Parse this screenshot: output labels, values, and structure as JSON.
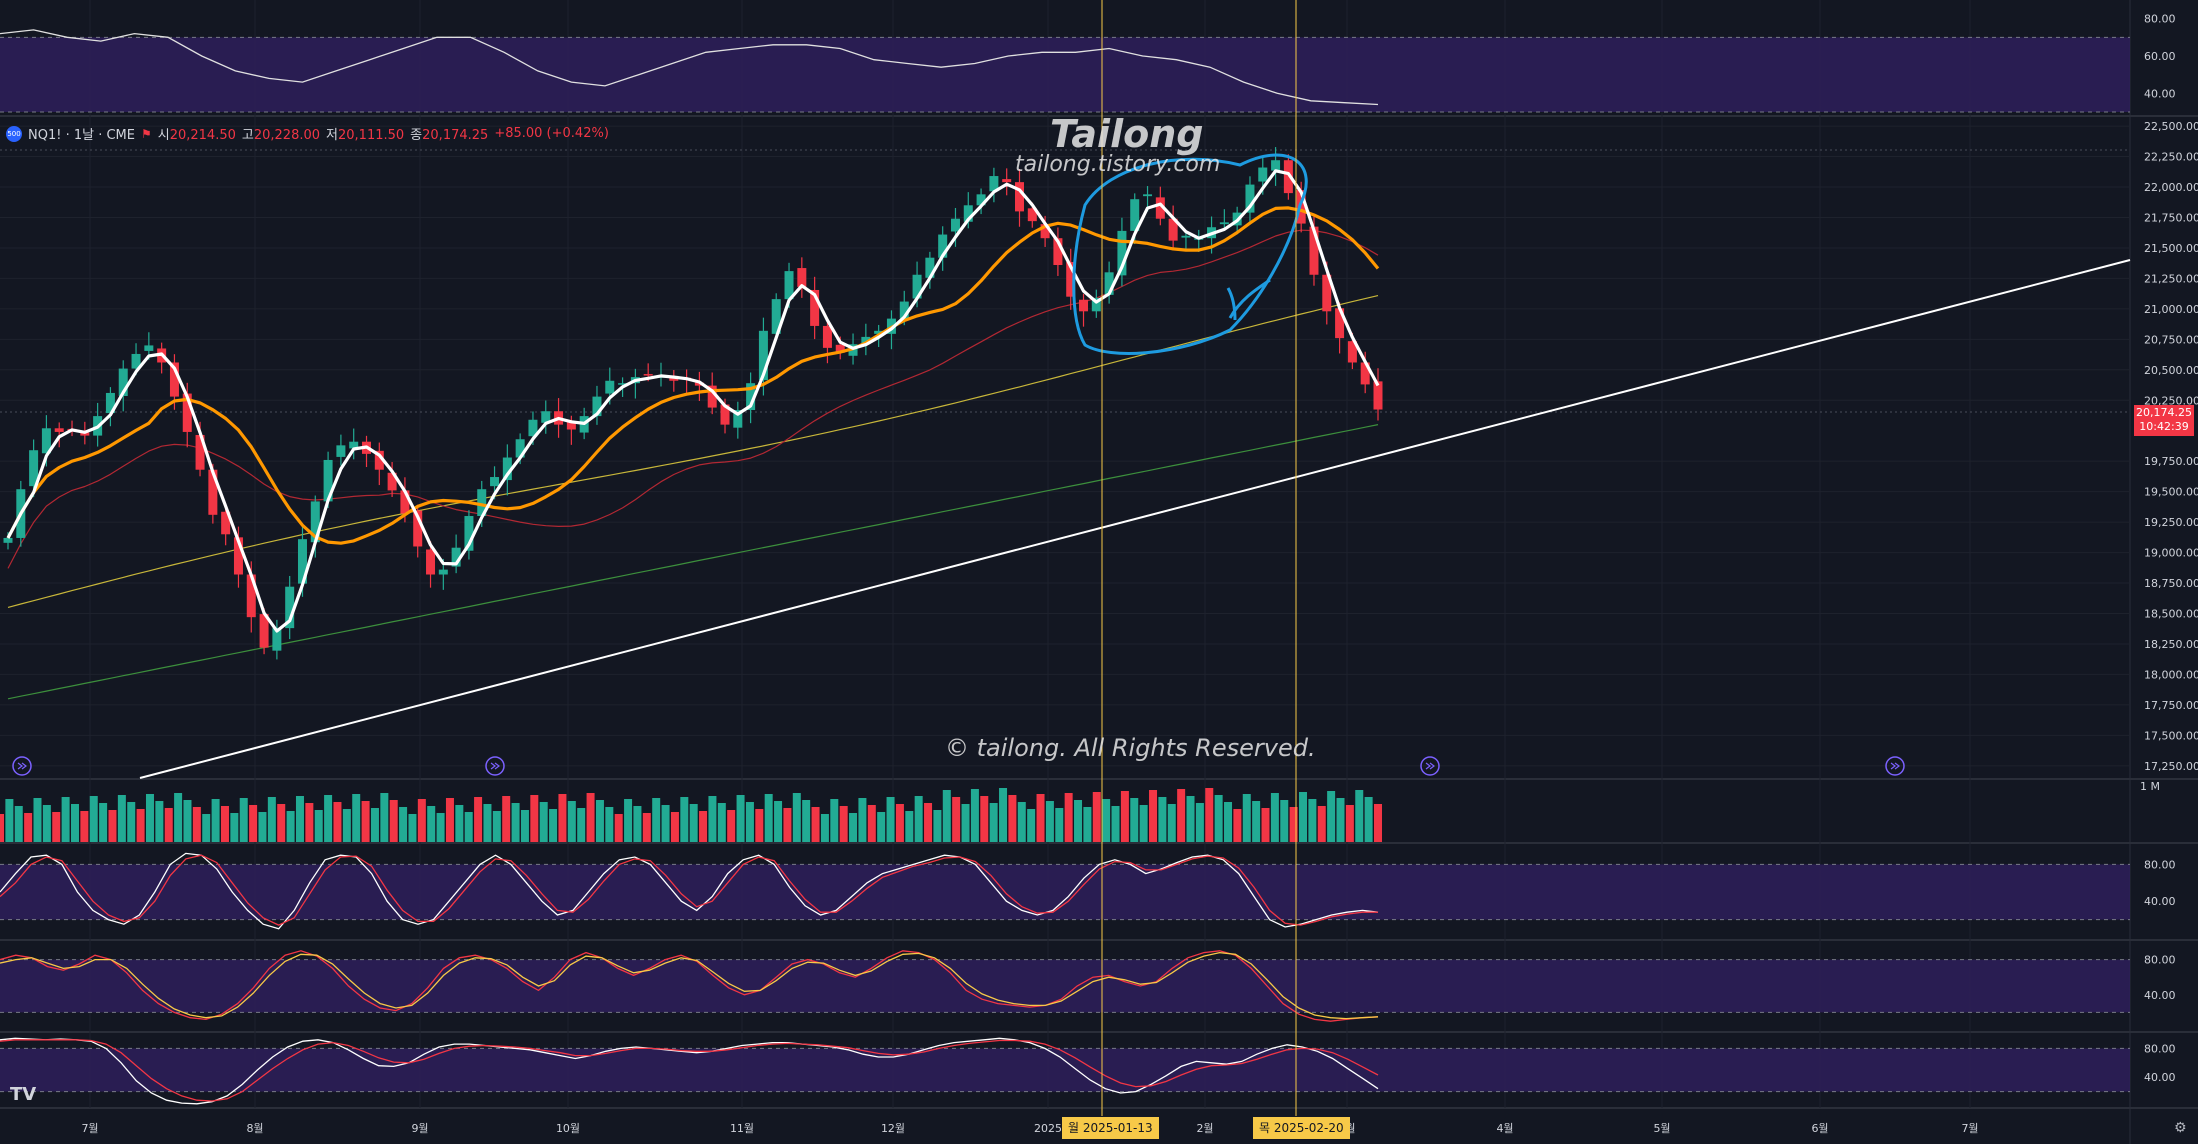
{
  "symbol_bar": {
    "icon": "cme-symbol-icon",
    "symbol": "NQ1! · 1날 · CME",
    "open_label": "시",
    "open": "20,214.50",
    "high_label": "고",
    "high": "20,228.00",
    "low_label": "저",
    "low": "20,111.50",
    "close_label": "종",
    "close": "20,174.25",
    "change": "+85.00 (+0.42%)"
  },
  "watermark": {
    "title": "Tailong",
    "url": "tailong.tistory.com",
    "copyright": "© tailong. All Rights Reserved."
  },
  "price_badge": {
    "price": "20,174.25",
    "countdown": "10:42:39"
  },
  "volume_label": "1 M",
  "tv_logo": "TV",
  "date_markers": [
    {
      "label": "월 2025-01-13"
    },
    {
      "label": "목 2025-02-20"
    }
  ],
  "colors": {
    "background": "#131722",
    "up": "#22ab94",
    "down": "#f23645",
    "ma_fast": "#ffffff",
    "ma_mid": "#ff9800",
    "ma_slow": "#b22833",
    "ma_200": "#c7b63a",
    "ma_long": "#3c8f3c",
    "trendline": "#ffffff",
    "annotation": "#1e9be0",
    "osc_band": "#2e1f5b",
    "marker_line": "#f7c948"
  },
  "chart_data": [
    {
      "type": "line",
      "panel": "oscillator-top",
      "y_ticks": [
        "80.00",
        "60.00",
        "40.00"
      ],
      "ylim": [
        30,
        90
      ],
      "bands": [
        70,
        30
      ],
      "series": [
        {
          "values": [
            72,
            74,
            70,
            68,
            72,
            70,
            60,
            52,
            48,
            46,
            52,
            58,
            64,
            70,
            70,
            62,
            52,
            46,
            44,
            50,
            56,
            62,
            64,
            66,
            66,
            64,
            58,
            56,
            54,
            56,
            60,
            62,
            62,
            64,
            60,
            58,
            54,
            46,
            40,
            36,
            35,
            34
          ]
        }
      ]
    },
    {
      "type": "candlestick",
      "panel": "main-price",
      "x_month_labels": [
        "7월",
        "8월",
        "9월",
        "10월",
        "11월",
        "12월",
        "2025",
        "2월",
        "3월",
        "4월",
        "5월",
        "6월",
        "7월"
      ],
      "y_ticks": [
        "22,500.00",
        "22,250.00",
        "22,000.00",
        "21,750.00",
        "21,500.00",
        "21,250.00",
        "21,000.00",
        "20,750.00",
        "20,500.00",
        "20,250.00",
        "19,750.00",
        "19,500.00",
        "19,250.00",
        "19,000.00",
        "18,750.00",
        "18,500.00",
        "18,250.00",
        "18,000.00",
        "17,750.00",
        "17,500.00",
        "17,250.00"
      ],
      "ylim": [
        17150,
        22550
      ],
      "closes": [
        19120,
        19520,
        19840,
        20020,
        19990,
        20010,
        19960,
        20120,
        20310,
        20510,
        20630,
        20700,
        20560,
        20280,
        19990,
        19680,
        19310,
        19150,
        18820,
        18470,
        18220,
        18380,
        18720,
        19110,
        19420,
        19760,
        19880,
        19910,
        19810,
        19680,
        19510,
        19320,
        19050,
        18820,
        18860,
        19040,
        19300,
        19520,
        19620,
        19780,
        19930,
        20090,
        20160,
        20050,
        20010,
        20120,
        20280,
        20410,
        20390,
        20440,
        20460,
        20450,
        20410,
        20420,
        20370,
        20190,
        20050,
        20170,
        20390,
        20820,
        21080,
        21310,
        21180,
        20860,
        20680,
        20640,
        20710,
        20770,
        20820,
        20920,
        21060,
        21280,
        21420,
        21610,
        21740,
        21850,
        21940,
        22090,
        22040,
        21800,
        21720,
        21580,
        21360,
        21100,
        20980,
        21090,
        21300,
        21640,
        21900,
        21940,
        21740,
        21560,
        21600,
        21580,
        21670,
        21710,
        21790,
        22020,
        22160,
        22220,
        21950,
        21700,
        21280,
        20980,
        20760,
        20560,
        20380,
        20174
      ],
      "highs_offset": 80,
      "lows_offset": 90,
      "series": [
        {
          "key": "ma_fast"
        },
        {
          "key": "ma_mid"
        },
        {
          "key": "ma_slow"
        },
        {
          "key": "ma_200"
        },
        {
          "key": "ma_long"
        }
      ],
      "trendline": {
        "x": [
          "2024-06-08",
          "2025-07-31"
        ],
        "y": [
          17150,
          21620
        ]
      },
      "annotation": "circled-top-with-arrow"
    },
    {
      "type": "bar",
      "panel": "volume"
    },
    {
      "type": "line",
      "panel": "stochastic",
      "y_ticks": [
        "80.00",
        "40.00"
      ],
      "ylim": [
        0,
        100
      ],
      "bands": [
        80,
        20
      ],
      "series": [
        {
          "values": [
            50,
            70,
            88,
            90,
            80,
            50,
            30,
            20,
            15,
            25,
            50,
            80,
            92,
            90,
            75,
            50,
            30,
            15,
            10,
            30,
            60,
            85,
            90,
            88,
            70,
            40,
            20,
            15,
            20,
            40,
            60,
            80,
            90,
            80,
            60,
            40,
            25,
            30,
            50,
            70,
            85,
            88,
            80,
            60,
            40,
            30,
            45,
            70,
            85,
            90,
            80,
            55,
            35,
            25,
            30,
            45,
            60,
            70,
            75,
            80,
            85,
            90,
            88,
            80,
            60,
            40,
            30,
            25,
            30,
            45,
            65,
            80,
            85,
            80,
            70,
            75,
            82,
            88,
            90,
            85,
            70,
            45,
            20,
            12,
            15,
            20,
            25,
            28,
            30,
            28
          ]
        },
        {
          "values": [
            45,
            60,
            80,
            88,
            84,
            62,
            40,
            25,
            18,
            22,
            40,
            68,
            86,
            90,
            82,
            60,
            38,
            22,
            14,
            22,
            48,
            74,
            88,
            89,
            78,
            52,
            30,
            18,
            18,
            32,
            52,
            72,
            86,
            84,
            68,
            48,
            30,
            28,
            42,
            62,
            80,
            86,
            84,
            68,
            48,
            34,
            40,
            60,
            80,
            88,
            84,
            62,
            42,
            28,
            28,
            40,
            54,
            66,
            72,
            78,
            82,
            87,
            88,
            83,
            68,
            48,
            34,
            27,
            28,
            40,
            58,
            75,
            83,
            82,
            74,
            74,
            80,
            86,
            89,
            87,
            76,
            55,
            30,
            16,
            14,
            18,
            23,
            26,
            28,
            28
          ]
        }
      ]
    },
    {
      "type": "line",
      "panel": "macd-osc",
      "y_ticks": [
        "80.00",
        "40.00"
      ],
      "ylim": [
        0,
        100
      ],
      "bands": [
        80,
        20
      ],
      "series": [
        {
          "values": [
            80,
            85,
            82,
            72,
            68,
            75,
            85,
            80,
            65,
            45,
            30,
            20,
            14,
            12,
            18,
            30,
            48,
            70,
            85,
            90,
            84,
            70,
            50,
            35,
            25,
            22,
            30,
            48,
            70,
            82,
            85,
            80,
            70,
            55,
            45,
            60,
            80,
            88,
            82,
            70,
            62,
            70,
            80,
            85,
            78,
            62,
            48,
            40,
            45,
            60,
            75,
            80,
            75,
            65,
            60,
            70,
            82,
            90,
            88,
            80,
            65,
            45,
            35,
            30,
            28,
            26,
            28,
            35,
            50,
            60,
            62,
            55,
            50,
            55,
            70,
            82,
            88,
            90,
            85,
            70,
            50,
            30,
            18,
            12,
            10,
            12,
            14,
            15
          ]
        },
        {
          "values": [
            76,
            80,
            82,
            76,
            70,
            72,
            80,
            80,
            70,
            52,
            36,
            24,
            17,
            14,
            16,
            26,
            42,
            62,
            78,
            86,
            85,
            75,
            58,
            42,
            30,
            25,
            28,
            42,
            62,
            76,
            82,
            81,
            74,
            60,
            50,
            56,
            74,
            84,
            82,
            73,
            65,
            68,
            76,
            82,
            79,
            66,
            53,
            44,
            45,
            56,
            70,
            77,
            76,
            68,
            62,
            67,
            78,
            86,
            87,
            82,
            70,
            53,
            41,
            34,
            30,
            28,
            28,
            33,
            44,
            55,
            60,
            57,
            52,
            54,
            65,
            77,
            84,
            88,
            86,
            75,
            57,
            38,
            25,
            17,
            14,
            13,
            14,
            15
          ]
        }
      ]
    },
    {
      "type": "line",
      "panel": "momentum",
      "y_ticks": [
        "80.00",
        "40.00"
      ],
      "ylim": [
        0,
        100
      ],
      "bands": [
        80,
        20
      ],
      "series": [
        {
          "values": [
            92,
            94,
            93,
            92,
            93,
            92,
            90,
            80,
            60,
            35,
            18,
            8,
            4,
            3,
            6,
            14,
            30,
            50,
            68,
            82,
            90,
            92,
            88,
            78,
            66,
            56,
            55,
            60,
            72,
            82,
            86,
            86,
            84,
            82,
            80,
            78,
            74,
            70,
            66,
            70,
            76,
            80,
            82,
            80,
            78,
            76,
            74,
            76,
            80,
            84,
            86,
            88,
            88,
            86,
            84,
            82,
            78,
            72,
            68,
            68,
            72,
            78,
            84,
            88,
            90,
            92,
            94,
            92,
            88,
            80,
            68,
            52,
            36,
            24,
            18,
            20,
            30,
            42,
            55,
            62,
            60,
            58,
            62,
            72,
            80,
            85,
            82,
            76,
            66,
            52,
            38,
            24
          ]
        },
        {
          "values": [
            90,
            92,
            92,
            92,
            92,
            92,
            91,
            86,
            74,
            56,
            38,
            24,
            14,
            8,
            7,
            10,
            20,
            36,
            52,
            66,
            78,
            86,
            88,
            84,
            76,
            67,
            61,
            60,
            65,
            73,
            80,
            83,
            84,
            83,
            82,
            80,
            77,
            74,
            70,
            70,
            73,
            77,
            80,
            80,
            79,
            77,
            76,
            76,
            78,
            81,
            84,
            86,
            87,
            86,
            85,
            83,
            81,
            77,
            73,
            71,
            72,
            75,
            80,
            84,
            87,
            89,
            91,
            91,
            90,
            86,
            78,
            67,
            54,
            42,
            32,
            27,
            28,
            34,
            43,
            51,
            56,
            57,
            59,
            65,
            72,
            78,
            80,
            79,
            74,
            65,
            54,
            43
          ]
        }
      ]
    }
  ]
}
